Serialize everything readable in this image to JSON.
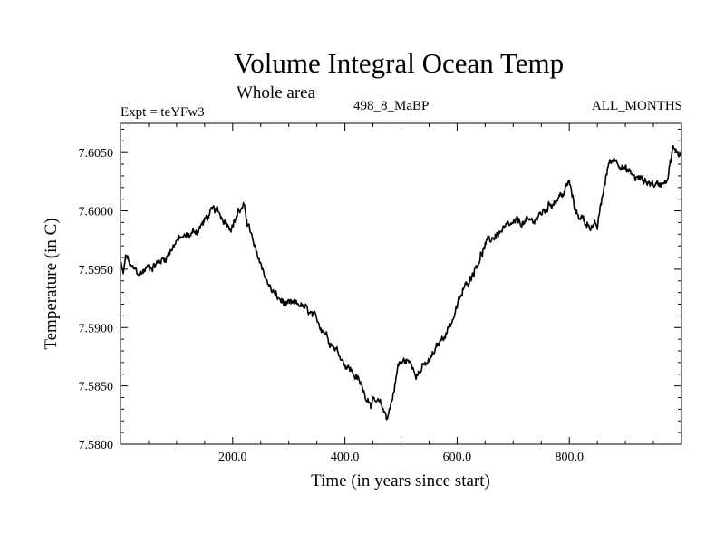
{
  "chart_data": {
    "type": "line",
    "title": "Volume Integral Ocean Temp",
    "subtitle": "Whole area",
    "expt_label": "Expt = teYFw3",
    "run_label": "498_8_MaBP",
    "period_label": "ALL_MONTHS",
    "xlabel": "Time (in years since start)",
    "ylabel": "Temperature (in C)",
    "xlim": [
      0,
      1000
    ],
    "ylim": [
      7.58,
      7.6075
    ],
    "x_ticks": [
      200,
      400,
      600,
      800
    ],
    "x_tick_labels": [
      "200.0",
      "400.0",
      "600.0",
      "800.0"
    ],
    "y_ticks": [
      7.58,
      7.585,
      7.59,
      7.595,
      7.6,
      7.605
    ],
    "y_tick_labels": [
      "7.5800",
      "7.5850",
      "7.5900",
      "7.5950",
      "7.6000",
      "7.6050"
    ],
    "grid": false,
    "series": [
      {
        "name": "Volume integral ocean temperature",
        "color": "#000000",
        "x": [
          0,
          5,
          10,
          20,
          35,
          50,
          65,
          80,
          100,
          120,
          140,
          160,
          170,
          180,
          190,
          200,
          210,
          220,
          230,
          240,
          250,
          265,
          280,
          300,
          320,
          340,
          360,
          380,
          400,
          420,
          440,
          455,
          465,
          475,
          485,
          495,
          510,
          530,
          550,
          570,
          590,
          610,
          630,
          650,
          670,
          690,
          710,
          730,
          750,
          770,
          790,
          800,
          810,
          830,
          850,
          860,
          870,
          880,
          890,
          900,
          920,
          940,
          960,
          975,
          985,
          990,
          1000
        ],
        "y": [
          7.5955,
          7.5945,
          7.5962,
          7.595,
          7.5946,
          7.5952,
          7.5955,
          7.596,
          7.5975,
          7.5978,
          7.5985,
          7.5998,
          7.6,
          7.5995,
          7.599,
          7.5988,
          7.6,
          7.6002,
          7.5985,
          7.5965,
          7.5955,
          7.5935,
          7.5925,
          7.5918,
          7.592,
          7.591,
          7.59,
          7.5885,
          7.587,
          7.5858,
          7.584,
          7.5835,
          7.5832,
          7.5823,
          7.584,
          7.5868,
          7.5872,
          7.5862,
          7.587,
          7.5888,
          7.5905,
          7.593,
          7.595,
          7.597,
          7.598,
          7.5985,
          7.599,
          7.599,
          7.5997,
          7.6008,
          7.6015,
          7.6025,
          7.6,
          7.599,
          7.5985,
          7.6015,
          7.604,
          7.6045,
          7.6042,
          7.6035,
          7.6028,
          7.6025,
          7.6022,
          7.603,
          7.6055,
          7.6048,
          7.605
        ]
      }
    ]
  }
}
